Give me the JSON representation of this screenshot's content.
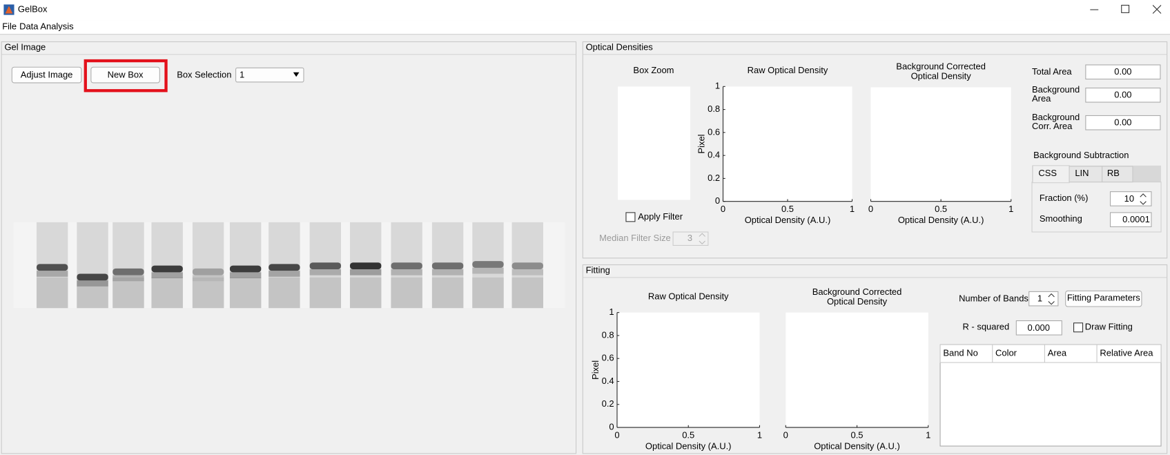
{
  "window": {
    "title": "GelBox"
  },
  "menu": [
    "File",
    "Data Analysis"
  ],
  "gel_image": {
    "title": "Gel Image",
    "buttons": [
      "Adjust Image",
      "New Box"
    ],
    "box_selection": {
      "label": "Box Selection",
      "value": "1"
    }
  },
  "optical_densities": {
    "title": "Optical Densities",
    "box_zoom": "Box Zoom",
    "apply_filter": "Apply Filter",
    "median_filter": {
      "label": "Median Filter Size",
      "value": "3"
    },
    "plots": [
      {
        "title": [
          "Raw Optical Density"
        ],
        "xlabel": "Optical Density (A.U.)",
        "ylabel": "Pixel",
        "xticks": [
          0,
          0.5,
          1
        ],
        "yticks": [
          0,
          0.2,
          0.4,
          0.6,
          0.8,
          1
        ]
      },
      {
        "title": [
          "Background Corrected",
          "Optical Density"
        ],
        "xlabel": "Optical Density (A.U.)",
        "xticks": [
          0,
          0.5,
          1
        ]
      }
    ],
    "areas": [
      {
        "label": [
          "Total Area"
        ],
        "value": "0.00"
      },
      {
        "label": [
          "Background",
          "Area"
        ],
        "value": "0.00"
      },
      {
        "label": [
          "Background",
          "Corr. Area"
        ],
        "value": "0.00"
      }
    ],
    "background_subtraction": {
      "title": "Background Subtraction",
      "tabs": [
        "CSS",
        "LIN",
        "RB"
      ],
      "fraction": {
        "label": "Fraction (%)",
        "value": "10"
      },
      "smoothing": {
        "label": "Smoothing",
        "value": "0.0001"
      }
    }
  },
  "fitting": {
    "title": "Fitting",
    "plots": [
      {
        "title": [
          "Raw Optical Density"
        ],
        "xlabel": "Optical Density (A.U.)",
        "ylabel": "Pixel",
        "xticks": [
          0,
          0.5,
          1
        ],
        "yticks": [
          0,
          0.2,
          0.4,
          0.6,
          0.8,
          1
        ]
      },
      {
        "title": [
          "Background Corrected",
          "Optical Density"
        ],
        "xlabel": "Optical Density (A.U.)",
        "xticks": [
          0,
          0.5,
          1
        ]
      }
    ],
    "number_of_bands": {
      "label": "Number of Bands",
      "value": "1"
    },
    "fitting_parameters": "Fitting Parameters",
    "r_squared": {
      "label": "R - squared",
      "value": "0.000"
    },
    "draw_fitting": "Draw Fitting",
    "table": {
      "columns": [
        "Band No",
        "Color",
        "Area",
        "Relative Area"
      ]
    }
  }
}
